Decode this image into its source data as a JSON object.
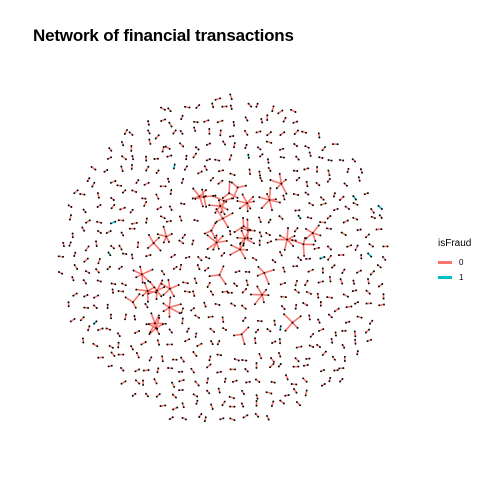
{
  "title": "Network of financial transactions",
  "legend": {
    "title": "isFraud",
    "items": [
      {
        "label": "0",
        "color": "#F8766D"
      },
      {
        "label": "1",
        "color": "#00BFC4"
      }
    ]
  },
  "node_color": "#000000"
}
